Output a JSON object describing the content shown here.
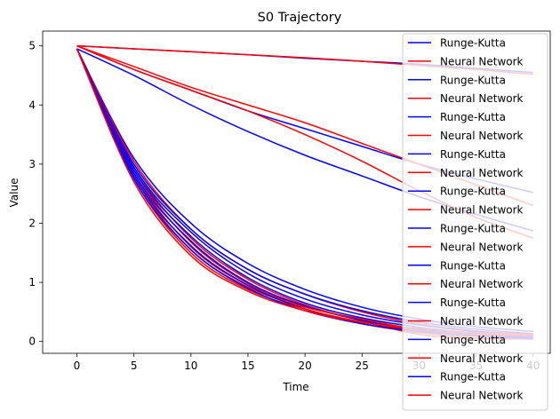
{
  "chart_data": {
    "type": "line",
    "title": "S0 Trajectory",
    "xlabel": "Time",
    "ylabel": "Value",
    "xlim": [
      -3,
      41.5
    ],
    "ylim": [
      -0.2,
      5.25
    ],
    "x_ticks": [
      0,
      5,
      10,
      15,
      20,
      25,
      30,
      35,
      40
    ],
    "y_ticks": [
      0,
      1,
      2,
      3,
      4,
      5
    ],
    "legend_position": "right",
    "grid": false,
    "colors": {
      "runge_kutta": "#0000ff",
      "neural_network": "#ff0000"
    },
    "legend": [
      {
        "label": "Runge-Kutta",
        "color": "#0000ff"
      },
      {
        "label": "Neural Network",
        "color": "#ff0000"
      },
      {
        "label": "Runge-Kutta",
        "color": "#0000ff"
      },
      {
        "label": "Neural Network",
        "color": "#ff0000"
      },
      {
        "label": "Runge-Kutta",
        "color": "#0000ff"
      },
      {
        "label": "Neural Network",
        "color": "#ff0000"
      },
      {
        "label": "Runge-Kutta",
        "color": "#0000ff"
      },
      {
        "label": "Neural Network",
        "color": "#ff0000"
      },
      {
        "label": "Runge-Kutta",
        "color": "#0000ff"
      },
      {
        "label": "Neural Network",
        "color": "#ff0000"
      },
      {
        "label": "Runge-Kutta",
        "color": "#0000ff"
      },
      {
        "label": "Neural Network",
        "color": "#ff0000"
      },
      {
        "label": "Runge-Kutta",
        "color": "#0000ff"
      },
      {
        "label": "Neural Network",
        "color": "#ff0000"
      },
      {
        "label": "Runge-Kutta",
        "color": "#0000ff"
      },
      {
        "label": "Neural Network",
        "color": "#ff0000"
      },
      {
        "label": "Runge-Kutta",
        "color": "#0000ff"
      },
      {
        "label": "Neural Network",
        "color": "#ff0000"
      },
      {
        "label": "Runge-Kutta",
        "color": "#0000ff"
      },
      {
        "label": "Neural Network",
        "color": "#ff0000"
      }
    ],
    "x": [
      0,
      5,
      10,
      15,
      20,
      25,
      30,
      35,
      40
    ],
    "series": [
      {
        "color": "#0000ff",
        "values": [
          5.0,
          4.95,
          4.9,
          4.85,
          4.79,
          4.74,
          4.69,
          4.62,
          4.55
        ]
      },
      {
        "color": "#ff0000",
        "values": [
          5.0,
          4.95,
          4.9,
          4.85,
          4.8,
          4.74,
          4.67,
          4.6,
          4.52
        ]
      },
      {
        "color": "#0000ff",
        "values": [
          5.0,
          4.6,
          4.25,
          3.9,
          3.6,
          3.3,
          3.0,
          2.75,
          2.52
        ]
      },
      {
        "color": "#ff0000",
        "values": [
          5.0,
          4.65,
          4.3,
          4.0,
          3.7,
          3.35,
          3.0,
          2.65,
          2.3
        ]
      },
      {
        "color": "#0000ff",
        "values": [
          4.95,
          4.5,
          4.0,
          3.55,
          3.15,
          2.8,
          2.45,
          2.15,
          1.87
        ]
      },
      {
        "color": "#ff0000",
        "values": [
          5.0,
          4.6,
          4.25,
          3.9,
          3.5,
          3.05,
          2.55,
          2.1,
          1.75
        ]
      },
      {
        "color": "#0000ff",
        "values": [
          4.95,
          3.1,
          2.0,
          1.32,
          0.88,
          0.58,
          0.38,
          0.25,
          0.17
        ]
      },
      {
        "color": "#ff0000",
        "values": [
          4.95,
          3.05,
          1.9,
          1.22,
          0.8,
          0.5,
          0.3,
          0.18,
          0.12
        ]
      },
      {
        "color": "#0000ff",
        "values": [
          4.95,
          3.0,
          1.9,
          1.22,
          0.8,
          0.52,
          0.33,
          0.21,
          0.13
        ]
      },
      {
        "color": "#ff0000",
        "values": [
          4.95,
          2.95,
          1.75,
          1.05,
          0.62,
          0.36,
          0.2,
          0.12,
          0.08
        ]
      },
      {
        "color": "#0000ff",
        "values": [
          4.95,
          2.95,
          1.85,
          1.15,
          0.72,
          0.45,
          0.28,
          0.17,
          0.1
        ]
      },
      {
        "color": "#ff0000",
        "values": [
          4.95,
          2.9,
          1.68,
          0.98,
          0.55,
          0.3,
          0.15,
          0.06,
          0.04
        ]
      },
      {
        "color": "#0000ff",
        "values": [
          4.95,
          2.9,
          1.78,
          1.08,
          0.65,
          0.4,
          0.24,
          0.14,
          0.08
        ]
      },
      {
        "color": "#ff0000",
        "values": [
          4.95,
          2.85,
          1.6,
          0.95,
          0.6,
          0.35,
          0.12,
          0.05,
          0.05
        ]
      },
      {
        "color": "#0000ff",
        "values": [
          4.95,
          2.85,
          1.7,
          1.0,
          0.6,
          0.36,
          0.21,
          0.12,
          0.07
        ]
      },
      {
        "color": "#ff0000",
        "values": [
          4.95,
          2.8,
          1.55,
          0.92,
          0.58,
          0.38,
          0.2,
          0.1,
          0.06
        ]
      },
      {
        "color": "#0000ff",
        "values": [
          4.95,
          2.8,
          1.62,
          0.95,
          0.55,
          0.33,
          0.19,
          0.1,
          0.06
        ]
      },
      {
        "color": "#ff0000",
        "values": [
          4.95,
          2.75,
          1.5,
          0.88,
          0.55,
          0.33,
          0.18,
          0.12,
          0.1
        ]
      },
      {
        "color": "#0000ff",
        "values": [
          4.95,
          2.75,
          1.55,
          0.9,
          0.52,
          0.3,
          0.17,
          0.09,
          0.05
        ]
      },
      {
        "color": "#ff0000",
        "values": [
          4.95,
          2.7,
          1.45,
          0.85,
          0.52,
          0.32,
          0.22,
          0.15,
          0.12
        ]
      }
    ]
  }
}
